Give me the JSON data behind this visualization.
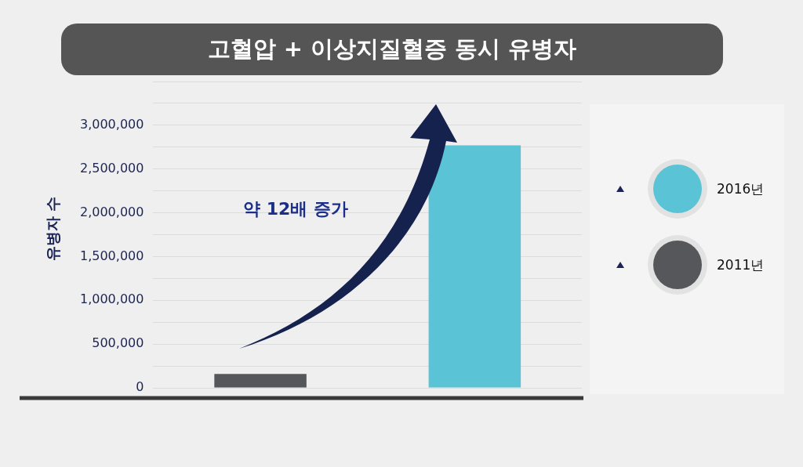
{
  "chart_data": {
    "type": "bar",
    "title": "고혈압 + 이상지질혈증 동시 유병자",
    "ylabel": "유병자 수",
    "categories": [
      null,
      null
    ],
    "series": [
      {
        "name": "2016년",
        "color": "#5bc3d6",
        "values": [
          null,
          2770000
        ]
      },
      {
        "name": "2011년",
        "color": "#56575a",
        "values": [
          160000,
          null
        ]
      }
    ],
    "ylim": [
      0,
      3500000
    ],
    "yticks": [
      0,
      {
        "value": 250000,
        "label": null
      },
      {
        "value": 500000,
        "label": "500,000"
      },
      {
        "value": 750000,
        "label": null
      },
      {
        "value": 1000000,
        "label": "1,000,000"
      },
      {
        "value": 1250000,
        "label": null
      },
      {
        "value": 1500000,
        "label": "1,500,000"
      },
      {
        "value": 1750000,
        "label": null
      },
      {
        "value": 2000000,
        "label": "2,000,000"
      },
      {
        "value": 2250000,
        "label": null
      },
      {
        "value": 2500000,
        "label": "2,500,000"
      },
      {
        "value": 2750000,
        "label": null
      },
      {
        "value": 3000000,
        "label": "3,000,000"
      },
      {
        "value": 3250000,
        "label": null
      },
      {
        "value": 3500000,
        "label": null
      }
    ],
    "grid": "y",
    "legend": "right",
    "tick_labels": "y",
    "annotations": [
      "약 12배 증가"
    ]
  }
}
